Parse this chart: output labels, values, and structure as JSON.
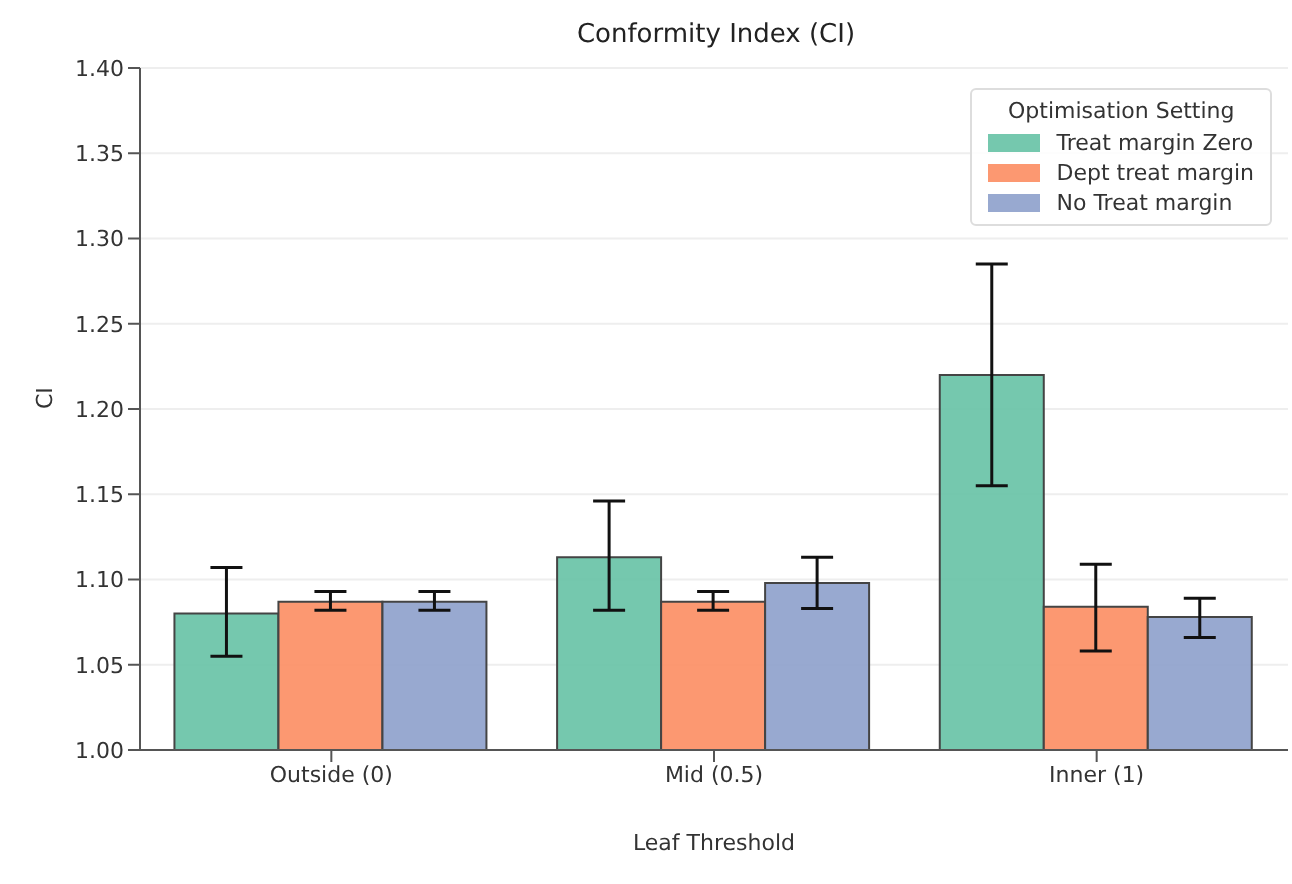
{
  "chart_data": {
    "type": "bar",
    "title": "Conformity Index (CI)",
    "xlabel": "Leaf Threshold",
    "ylabel": "CI",
    "legend_title": "Optimisation Setting",
    "categories": [
      "Outside (0)",
      "Mid (0.5)",
      "Inner (1)"
    ],
    "series": [
      {
        "name": "Treat margin Zero",
        "color": "#66c2a5",
        "values": [
          1.08,
          1.113,
          1.22
        ],
        "errors": [
          [
            1.055,
            1.107
          ],
          [
            1.082,
            1.146
          ],
          [
            1.155,
            1.285
          ]
        ]
      },
      {
        "name": "Dept treat margin",
        "color": "#fc8d62",
        "values": [
          1.087,
          1.087,
          1.084
        ],
        "errors": [
          [
            1.082,
            1.093
          ],
          [
            1.082,
            1.093
          ],
          [
            1.058,
            1.109
          ]
        ]
      },
      {
        "name": "No Treat margin",
        "color": "#8da0cb",
        "values": [
          1.087,
          1.098,
          1.078
        ],
        "errors": [
          [
            1.082,
            1.093
          ],
          [
            1.083,
            1.113
          ],
          [
            1.066,
            1.089
          ]
        ]
      }
    ],
    "ylim": [
      1.0,
      1.4
    ],
    "yticks": [
      {
        "value": 1.0,
        "label": "1.00"
      },
      {
        "value": 1.05,
        "label": "1.05"
      },
      {
        "value": 1.1,
        "label": "1.10"
      },
      {
        "value": 1.15,
        "label": "1.15"
      },
      {
        "value": 1.2,
        "label": "1.20"
      },
      {
        "value": 1.25,
        "label": "1.25"
      },
      {
        "value": 1.3,
        "label": "1.30"
      },
      {
        "value": 1.35,
        "label": "1.35"
      },
      {
        "value": 1.4,
        "label": "1.40"
      }
    ],
    "grid": "y",
    "legend": "top right"
  }
}
